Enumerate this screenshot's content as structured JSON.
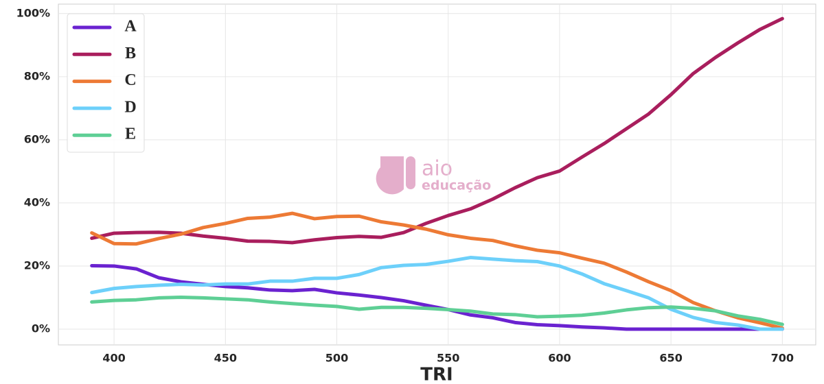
{
  "chart_data": {
    "type": "line",
    "x": [
      390,
      400,
      410,
      420,
      430,
      440,
      450,
      460,
      470,
      480,
      490,
      500,
      510,
      520,
      530,
      540,
      550,
      560,
      570,
      580,
      590,
      600,
      610,
      620,
      630,
      640,
      650,
      660,
      670,
      680,
      690,
      700
    ],
    "series": [
      {
        "name": "A",
        "color": "#6a22d0",
        "values": [
          20.1,
          20,
          19.1,
          16.3,
          15,
          14.2,
          13.5,
          13.1,
          12.4,
          12.2,
          12.6,
          11.5,
          10.8,
          10,
          9,
          7.6,
          6.2,
          4.5,
          3.6,
          2.1,
          1.4,
          1.1,
          0.7,
          0.4,
          0,
          0,
          0,
          0,
          0,
          0,
          0,
          0
        ]
      },
      {
        "name": "B",
        "color": "#a91e5d",
        "values": [
          28.8,
          30.4,
          30.6,
          30.7,
          30.4,
          29.5,
          28.8,
          27.9,
          27.8,
          27.4,
          28.3,
          29,
          29.4,
          29.1,
          30.6,
          33.5,
          36,
          38.1,
          41.2,
          44.8,
          48,
          50.1,
          54.5,
          58.8,
          63.5,
          68.2,
          74.3,
          81,
          86.1,
          90.7,
          95,
          98.4
        ]
      },
      {
        "name": "C",
        "color": "#ed7a35",
        "values": [
          30.5,
          27.1,
          27,
          28.7,
          30.1,
          32.2,
          33.5,
          35.1,
          35.5,
          36.7,
          35,
          35.7,
          35.8,
          34,
          33,
          31.7,
          29.9,
          28.8,
          28.1,
          26.4,
          25,
          24.2,
          22.5,
          20.9,
          18.1,
          15,
          12.2,
          8.4,
          5.8,
          3.6,
          2,
          0.3
        ]
      },
      {
        "name": "D",
        "color": "#6dd0fa",
        "values": [
          11.6,
          12.9,
          13.5,
          13.9,
          14.2,
          14,
          14.3,
          14.3,
          15.2,
          15.2,
          16.1,
          16.1,
          17.3,
          19.5,
          20.2,
          20.5,
          21.5,
          22.7,
          22.2,
          21.7,
          21.4,
          20,
          17.5,
          14.4,
          12.2,
          9.9,
          6.3,
          3.7,
          2.1,
          1.3,
          0,
          0
        ]
      },
      {
        "name": "E",
        "color": "#5ecf95",
        "values": [
          8.6,
          9.1,
          9.3,
          9.9,
          10.1,
          9.9,
          9.6,
          9.3,
          8.6,
          8.1,
          7.6,
          7.2,
          6.3,
          6.9,
          6.9,
          6.6,
          6.2,
          5.7,
          4.8,
          4.6,
          3.9,
          4.1,
          4.4,
          5.1,
          6.1,
          6.8,
          7,
          6.6,
          5.8,
          4.2,
          3.1,
          1.5
        ]
      }
    ],
    "xlabel": "TRI",
    "xlim": [
      375,
      715
    ],
    "ylim": [
      -5,
      103
    ],
    "xticks": [
      400,
      450,
      500,
      550,
      600,
      650,
      700
    ],
    "yticks": [
      {
        "value": 0,
        "label": "0%"
      },
      {
        "value": 20,
        "label": "20%"
      },
      {
        "value": 40,
        "label": "40%"
      },
      {
        "value": 60,
        "label": "60%"
      },
      {
        "value": 80,
        "label": "80%"
      },
      {
        "value": 100,
        "label": "100%"
      }
    ],
    "grid": true,
    "legend": "upper-left"
  },
  "watermark": {
    "text": "aio",
    "subtext": "educação"
  }
}
